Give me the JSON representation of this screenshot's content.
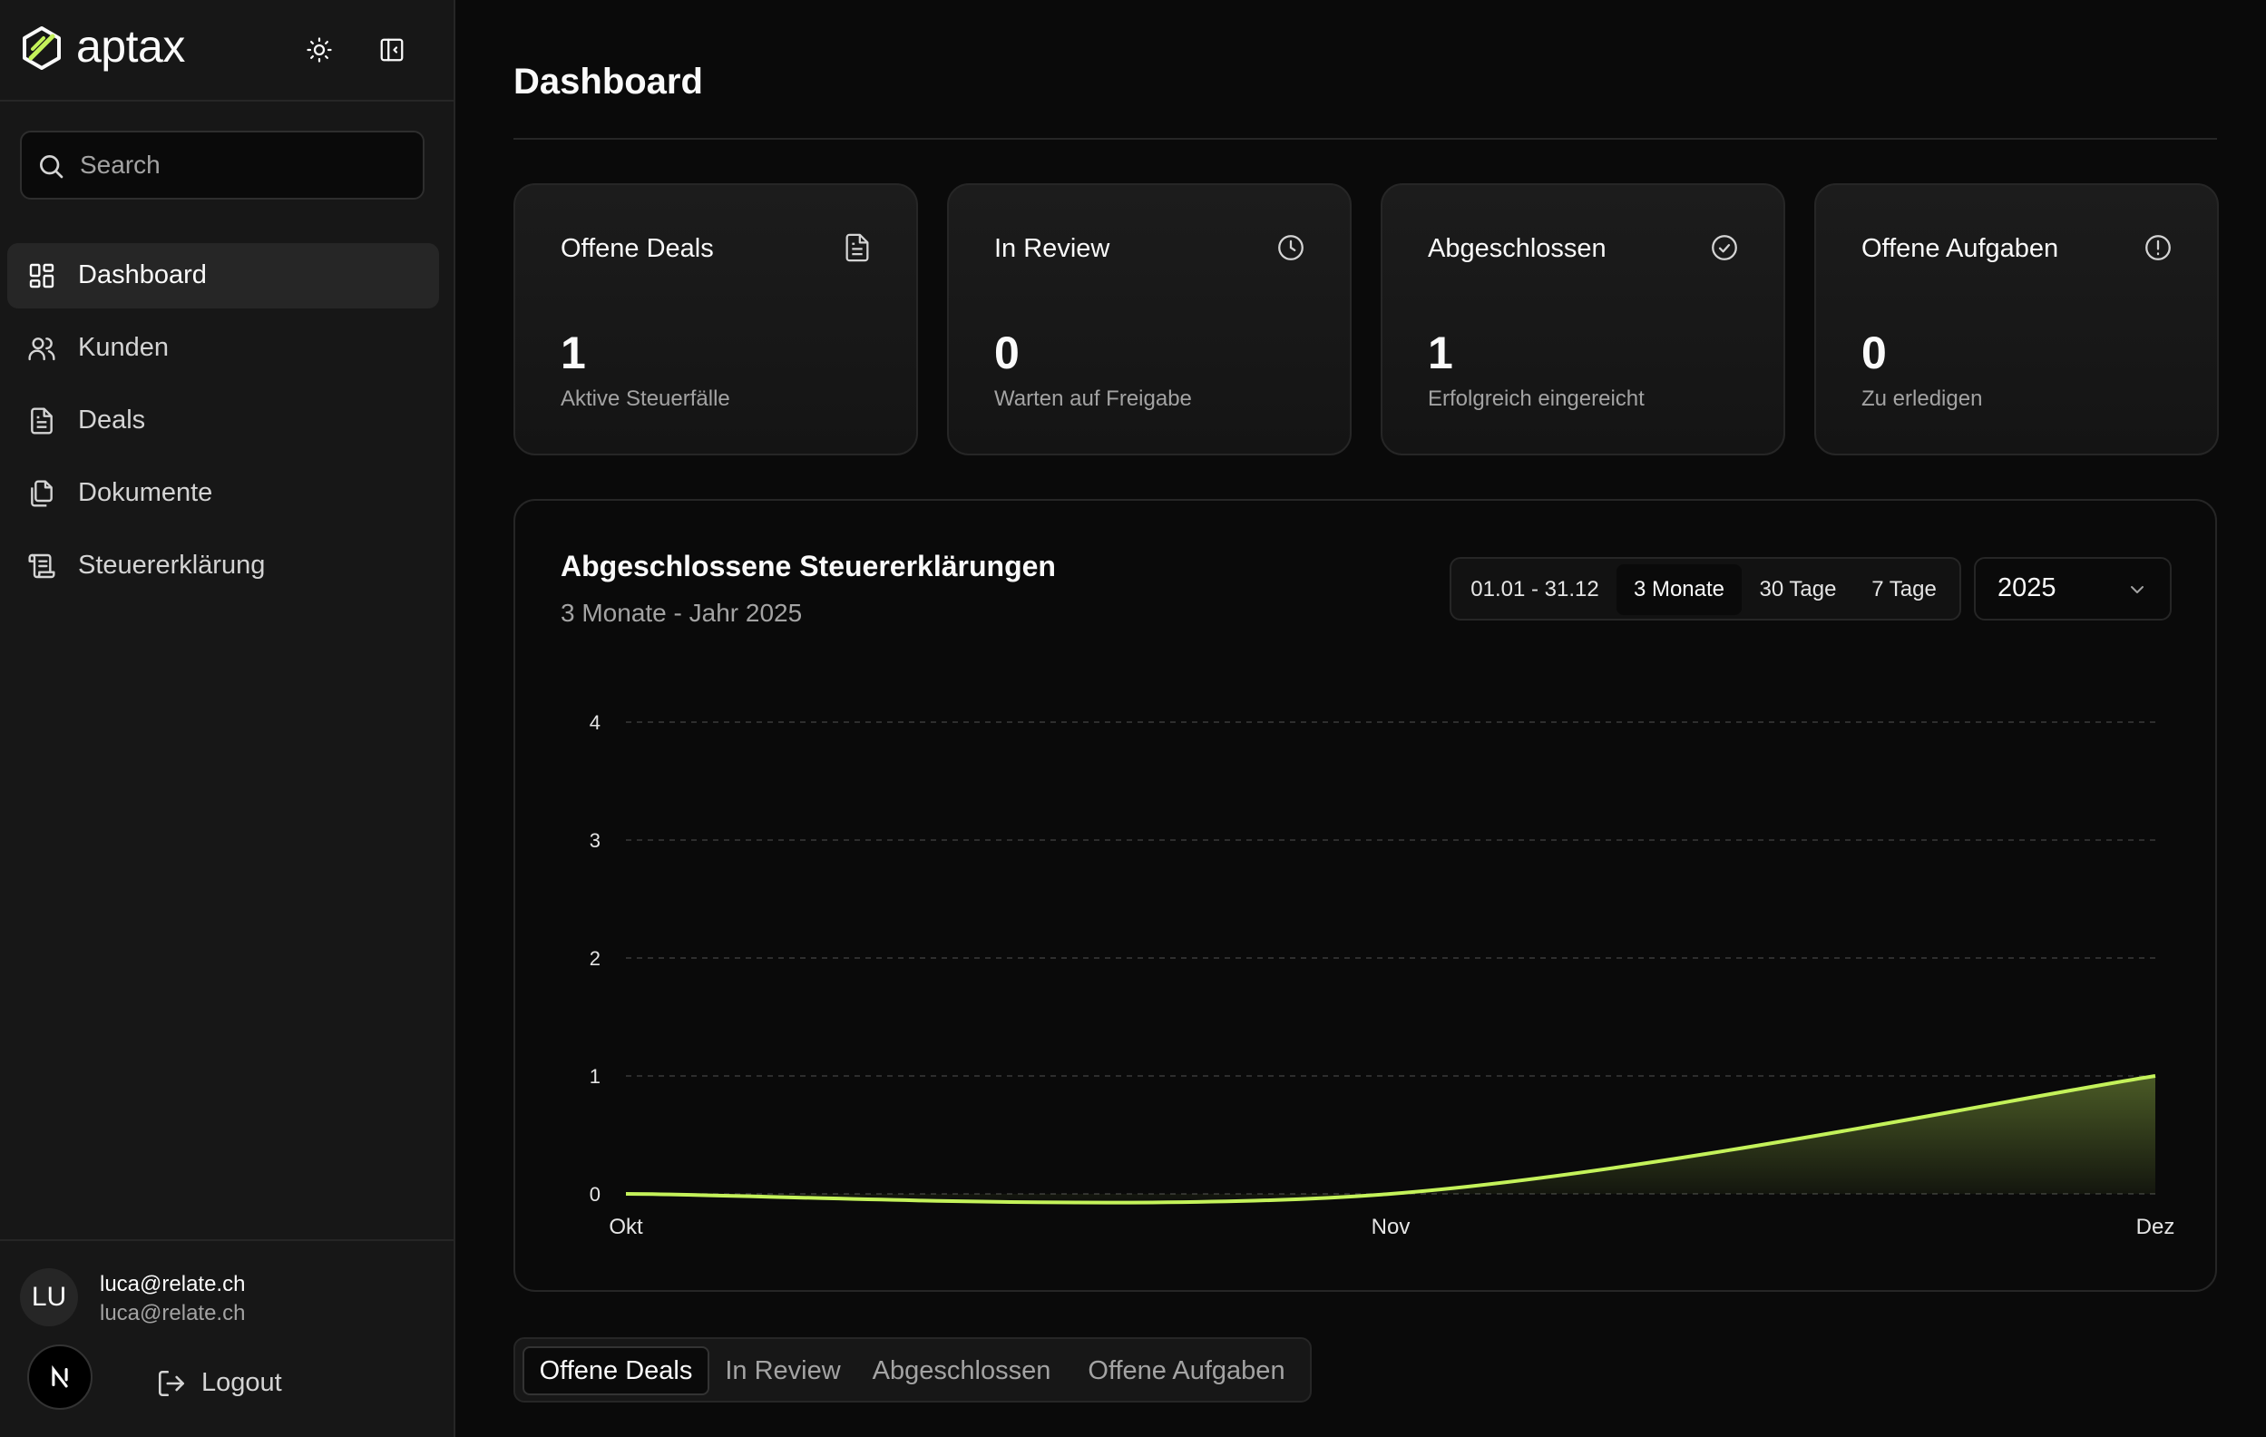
{
  "brand": {
    "name": "aptax"
  },
  "search": {
    "placeholder": "Search"
  },
  "sidebar": {
    "items": [
      {
        "label": "Dashboard",
        "icon": "dashboard-icon",
        "active": true
      },
      {
        "label": "Kunden",
        "icon": "users-icon"
      },
      {
        "label": "Deals",
        "icon": "file-text-icon"
      },
      {
        "label": "Dokumente",
        "icon": "files-icon"
      },
      {
        "label": "Steuererklärung",
        "icon": "scroll-icon"
      }
    ]
  },
  "user": {
    "initials": "LU",
    "name": "luca@relate.ch",
    "email": "luca@relate.ch",
    "logout_label": "Logout"
  },
  "page": {
    "title": "Dashboard"
  },
  "stats": [
    {
      "title": "Offene Deals",
      "value": "1",
      "subtitle": "Aktive Steuerfälle",
      "icon": "file-text-icon"
    },
    {
      "title": "In Review",
      "value": "0",
      "subtitle": "Warten auf Freigabe",
      "icon": "clock-icon"
    },
    {
      "title": "Abgeschlossen",
      "value": "1",
      "subtitle": "Erfolgreich eingereicht",
      "icon": "check-circle-icon"
    },
    {
      "title": "Offene Aufgaben",
      "value": "0",
      "subtitle": "Zu erledigen",
      "icon": "alert-circle-icon"
    }
  ],
  "chart_panel": {
    "title": "Abgeschlossene Steuererklärungen",
    "subtitle": "3 Monate - Jahr 2025",
    "ranges": [
      "01.01 - 31.12",
      "3 Monate",
      "30 Tage",
      "7 Tage"
    ],
    "active_range": "3 Monate",
    "year": "2025"
  },
  "chart_data": {
    "type": "area",
    "categories": [
      "Okt",
      "Nov",
      "Dez"
    ],
    "series": [
      {
        "values": [
          0,
          0,
          1
        ]
      }
    ],
    "ylim": [
      0,
      4
    ],
    "yticks": [
      0,
      1,
      2,
      3,
      4
    ],
    "grid": true,
    "line_color": "#c4f25a"
  },
  "tabs": {
    "items": [
      "Offene Deals",
      "In Review",
      "Abgeschlossen",
      "Offene Aufgaben"
    ],
    "active": "Offene Deals"
  },
  "colors": {
    "accent": "#c4f25a",
    "background": "#0a0a0a",
    "sidebar": "#171717",
    "border": "#262626"
  }
}
